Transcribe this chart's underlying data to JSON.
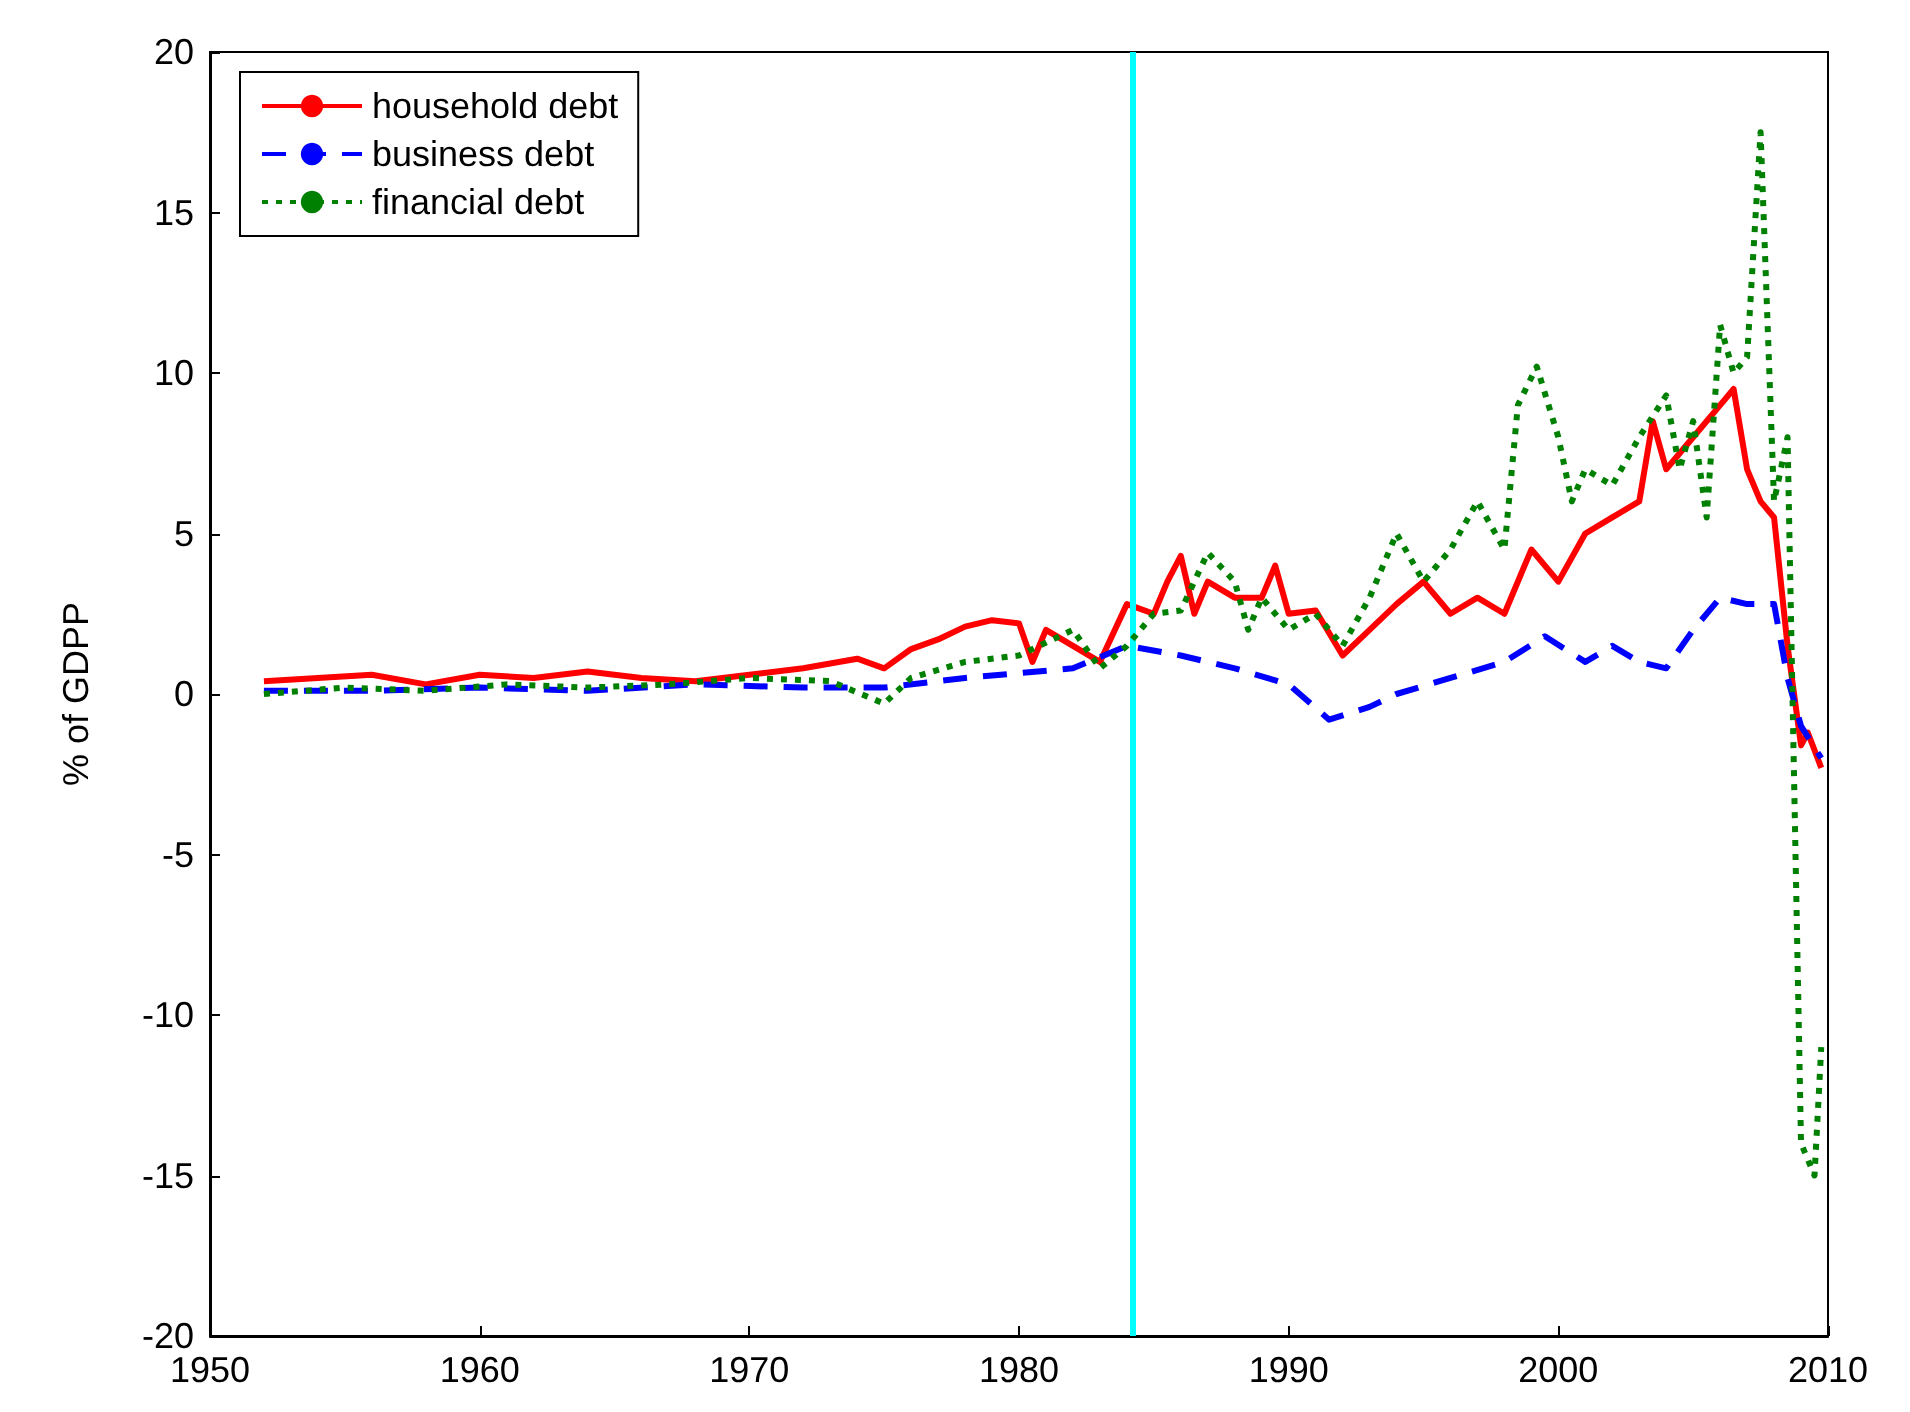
{
  "chart_data": {
    "type": "line",
    "ylabel": "% of GDPP",
    "xlim": [
      1950,
      2010
    ],
    "xticks": [
      1950,
      1960,
      1970,
      1980,
      1990,
      2000,
      2010
    ],
    "ylim": [
      -20,
      20
    ],
    "yticks": [
      -20,
      -15,
      -10,
      -5,
      0,
      5,
      10,
      15,
      20
    ],
    "grid": false,
    "legend": "top left",
    "marker": "none",
    "ref_lines": [
      {
        "axis": "x",
        "value": 1984.2,
        "color": "#00ffff"
      }
    ],
    "series": [
      {
        "name": "household debt",
        "color": "#ff0000",
        "line_style": "solid",
        "x": [
          1952,
          1954,
          1956,
          1958,
          1960,
          1962,
          1964,
          1966,
          1968,
          1970,
          1972,
          1974,
          1975,
          1976,
          1977,
          1978,
          1979,
          1980,
          1980.5,
          1981,
          1982,
          1983,
          1984,
          1985,
          1985.5,
          1986,
          1986.5,
          1987,
          1988,
          1989,
          1989.5,
          1990,
          1991,
          1992,
          1993,
          1994,
          1995,
          1996,
          1997,
          1998,
          1999,
          2000,
          2001,
          2002,
          2003,
          2003.5,
          2004,
          2005,
          2006,
          2006.5,
          2007,
          2007.5,
          2008,
          2008.5,
          2009,
          2009.25,
          2009.75
        ],
        "values": [
          0.4,
          0.5,
          0.6,
          0.3,
          0.6,
          0.5,
          0.7,
          0.5,
          0.4,
          0.6,
          0.8,
          1.1,
          0.8,
          1.4,
          1.7,
          2.1,
          2.3,
          2.2,
          1.0,
          2.0,
          1.5,
          1.0,
          2.8,
          2.5,
          3.5,
          4.3,
          2.5,
          3.5,
          3.0,
          3.0,
          4.0,
          2.5,
          2.6,
          1.2,
          2.0,
          2.8,
          3.5,
          2.5,
          3.0,
          2.5,
          4.5,
          3.5,
          5.0,
          5.5,
          6.0,
          8.5,
          7.0,
          8.0,
          9.0,
          9.5,
          7.0,
          6.0,
          5.5,
          1.5,
          -1.6,
          -1.2,
          -2.3
        ]
      },
      {
        "name": "business debt",
        "color": "#0000ff",
        "line_style": "dashed",
        "x": [
          1952,
          1956,
          1960,
          1964,
          1968,
          1972,
          1975,
          1978,
          1982,
          1984,
          1986,
          1988,
          1990,
          1991.5,
          1993,
          1994,
          1996,
          1998,
          1999.5,
          2001,
          2002,
          2003,
          2004,
          2005,
          2006,
          2007,
          2008,
          2008.5,
          2009,
          2009.75
        ],
        "values": [
          0.1,
          0.1,
          0.2,
          0.1,
          0.3,
          0.2,
          0.2,
          0.5,
          0.8,
          1.5,
          1.2,
          0.8,
          0.3,
          -0.8,
          -0.4,
          0.0,
          0.5,
          1.0,
          1.8,
          1.0,
          1.5,
          1.0,
          0.8,
          2.0,
          3.0,
          2.8,
          2.8,
          0.5,
          -1.0,
          -2.0
        ]
      },
      {
        "name": "financial debt",
        "color": "#008000",
        "line_style": "dotted",
        "x": [
          1952,
          1955,
          1958,
          1961,
          1964,
          1967,
          1970,
          1973,
          1975,
          1976,
          1978,
          1980,
          1982,
          1983,
          1984,
          1985,
          1986,
          1987,
          1988,
          1988.5,
          1989,
          1990,
          1991,
          1992,
          1993,
          1994,
          1995,
          1996,
          1997,
          1998,
          1998.5,
          1999.2,
          2000,
          2000.5,
          2001,
          2002,
          2003,
          2004,
          2004.5,
          2005,
          2005.5,
          2006,
          2006.5,
          2007,
          2007.5,
          2008,
          2008.5,
          2009,
          2009.5,
          2009.75
        ],
        "values": [
          0.0,
          0.2,
          0.1,
          0.3,
          0.2,
          0.3,
          0.5,
          0.4,
          -0.3,
          0.5,
          1.0,
          1.2,
          2.0,
          0.8,
          1.5,
          2.5,
          2.6,
          4.4,
          3.5,
          2.0,
          3.0,
          2.0,
          2.5,
          1.5,
          3.0,
          5.0,
          3.5,
          4.5,
          6.0,
          4.5,
          9.0,
          10.2,
          8.0,
          6.0,
          7.0,
          6.5,
          8.0,
          9.3,
          7.0,
          8.5,
          5.5,
          11.5,
          10.0,
          10.5,
          17.5,
          6.0,
          8.0,
          -14.0,
          -15.0,
          -11.0
        ]
      }
    ]
  }
}
